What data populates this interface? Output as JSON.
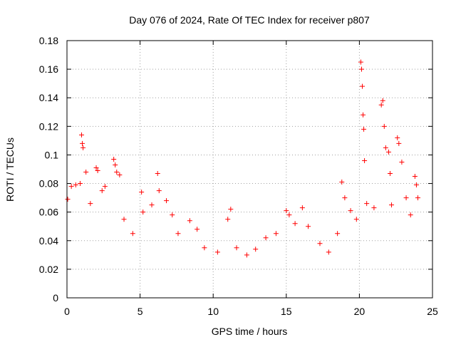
{
  "chart_data": {
    "type": "scatter",
    "title": "Day 076 of 2024, Rate Of TEC Index for receiver p807",
    "xlabel": "GPS time / hours",
    "ylabel": "ROTI / TECUs",
    "xlim": [
      0,
      25
    ],
    "ylim": [
      0,
      0.18
    ],
    "x_ticks": [
      "0",
      "5",
      "10",
      "15",
      "20",
      "25"
    ],
    "y_ticks": [
      "0",
      "0.02",
      "0.04",
      "0.06",
      "0.08",
      "0.1",
      "0.12",
      "0.14",
      "0.16",
      "0.18"
    ],
    "grid": true,
    "marker": "+",
    "series_color": "#ff0000",
    "points": [
      [
        0.05,
        0.069
      ],
      [
        0.3,
        0.078
      ],
      [
        0.6,
        0.079
      ],
      [
        0.9,
        0.08
      ],
      [
        1.0,
        0.114
      ],
      [
        1.05,
        0.108
      ],
      [
        1.1,
        0.105
      ],
      [
        1.3,
        0.088
      ],
      [
        1.6,
        0.066
      ],
      [
        2.0,
        0.091
      ],
      [
        2.1,
        0.089
      ],
      [
        2.4,
        0.075
      ],
      [
        2.6,
        0.078
      ],
      [
        3.2,
        0.097
      ],
      [
        3.3,
        0.093
      ],
      [
        3.4,
        0.088
      ],
      [
        3.6,
        0.086
      ],
      [
        3.9,
        0.055
      ],
      [
        4.5,
        0.045
      ],
      [
        5.1,
        0.074
      ],
      [
        5.2,
        0.06
      ],
      [
        5.8,
        0.065
      ],
      [
        6.2,
        0.087
      ],
      [
        6.3,
        0.075
      ],
      [
        6.8,
        0.068
      ],
      [
        7.2,
        0.058
      ],
      [
        7.6,
        0.045
      ],
      [
        8.4,
        0.054
      ],
      [
        8.9,
        0.048
      ],
      [
        9.4,
        0.035
      ],
      [
        10.3,
        0.032
      ],
      [
        11.0,
        0.055
      ],
      [
        11.2,
        0.062
      ],
      [
        11.6,
        0.035
      ],
      [
        12.3,
        0.03
      ],
      [
        12.9,
        0.034
      ],
      [
        13.6,
        0.042
      ],
      [
        14.3,
        0.045
      ],
      [
        15.0,
        0.061
      ],
      [
        15.2,
        0.058
      ],
      [
        15.6,
        0.052
      ],
      [
        16.1,
        0.063
      ],
      [
        16.5,
        0.05
      ],
      [
        17.3,
        0.038
      ],
      [
        17.9,
        0.032
      ],
      [
        18.5,
        0.045
      ],
      [
        18.8,
        0.081
      ],
      [
        19.0,
        0.07
      ],
      [
        19.4,
        0.061
      ],
      [
        19.8,
        0.055
      ],
      [
        20.1,
        0.165
      ],
      [
        20.15,
        0.16
      ],
      [
        20.2,
        0.148
      ],
      [
        20.25,
        0.128
      ],
      [
        20.3,
        0.118
      ],
      [
        20.35,
        0.096
      ],
      [
        20.5,
        0.066
      ],
      [
        21.0,
        0.063
      ],
      [
        21.5,
        0.135
      ],
      [
        21.6,
        0.138
      ],
      [
        21.7,
        0.12
      ],
      [
        21.8,
        0.105
      ],
      [
        22.0,
        0.102
      ],
      [
        22.1,
        0.087
      ],
      [
        22.2,
        0.065
      ],
      [
        22.6,
        0.112
      ],
      [
        22.7,
        0.108
      ],
      [
        22.9,
        0.095
      ],
      [
        23.2,
        0.07
      ],
      [
        23.5,
        0.058
      ],
      [
        23.8,
        0.085
      ],
      [
        23.9,
        0.079
      ],
      [
        24.0,
        0.07
      ]
    ]
  }
}
